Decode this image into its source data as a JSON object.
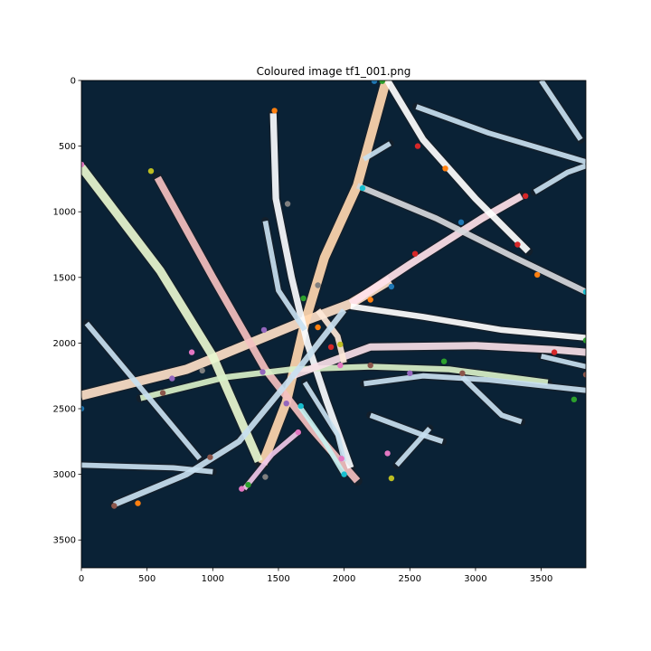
{
  "title": "Coloured image tf1_001.png",
  "image": {
    "width": 3840,
    "height": 3712,
    "background": "#0a2236"
  },
  "axes": {
    "x_ticks": [
      0,
      500,
      1000,
      1500,
      2000,
      2500,
      3000,
      3500
    ],
    "y_ticks": [
      0,
      500,
      1000,
      1500,
      2000,
      2500,
      3000,
      3500
    ],
    "x_range": [
      0,
      3840
    ],
    "y_range": [
      0,
      3712
    ]
  },
  "filaments": [
    {
      "color": "#fde0c8",
      "width": 70,
      "points": [
        [
          0,
          2400
        ],
        [
          800,
          2200
        ],
        [
          1650,
          1850
        ],
        [
          2050,
          1700
        ],
        [
          2350,
          1520
        ]
      ]
    },
    {
      "color": "#ffe2ea",
      "width": 55,
      "points": [
        [
          2050,
          1700
        ],
        [
          2500,
          1400
        ],
        [
          3050,
          1050
        ],
        [
          3350,
          880
        ]
      ]
    },
    {
      "color": "#ffd7b0",
      "width": 70,
      "points": [
        [
          1380,
          2920
        ],
        [
          1560,
          2450
        ],
        [
          1700,
          1850
        ],
        [
          1850,
          1350
        ],
        [
          2100,
          800
        ],
        [
          2320,
          0
        ]
      ]
    },
    {
      "color": "#f4c0c0",
      "width": 55,
      "points": [
        [
          580,
          740
        ],
        [
          1000,
          1500
        ],
        [
          1400,
          2200
        ],
        [
          1750,
          2650
        ],
        [
          2100,
          3050
        ]
      ]
    },
    {
      "color": "#fafcff",
      "width": 50,
      "points": [
        [
          1460,
          250
        ],
        [
          1480,
          900
        ],
        [
          1600,
          1500
        ],
        [
          1720,
          2000
        ],
        [
          1870,
          2450
        ],
        [
          2050,
          2950
        ]
      ]
    },
    {
      "color": "#e8f7d0",
      "width": 65,
      "points": [
        [
          0,
          660
        ],
        [
          600,
          1450
        ],
        [
          1000,
          2100
        ],
        [
          1350,
          2900
        ]
      ]
    },
    {
      "color": "#d8f0c8",
      "width": 45,
      "points": [
        [
          450,
          2420
        ],
        [
          1100,
          2260
        ],
        [
          1600,
          2200
        ],
        [
          2200,
          2180
        ],
        [
          2800,
          2200
        ],
        [
          3550,
          2300
        ]
      ]
    },
    {
      "color": "#f7e0e8",
      "width": 55,
      "points": [
        [
          1600,
          2250
        ],
        [
          2200,
          2030
        ],
        [
          3000,
          2020
        ],
        [
          3600,
          2050
        ],
        [
          3840,
          2070
        ]
      ]
    },
    {
      "color": "#ffffff",
      "width": 45,
      "points": [
        [
          2050,
          1720
        ],
        [
          2600,
          1800
        ],
        [
          3200,
          1900
        ],
        [
          3840,
          1960
        ]
      ]
    },
    {
      "color": "#ffffff",
      "width": 50,
      "points": [
        [
          2330,
          0
        ],
        [
          2600,
          450
        ],
        [
          3000,
          900
        ],
        [
          3400,
          1300
        ]
      ]
    },
    {
      "color": "#d6d8dc",
      "width": 45,
      "points": [
        [
          2100,
          800
        ],
        [
          2700,
          1050
        ],
        [
          3300,
          1350
        ],
        [
          3840,
          1610
        ]
      ]
    },
    {
      "color": "#fde8d8",
      "width": 45,
      "points": [
        [
          1800,
          1750
        ],
        [
          1950,
          1950
        ],
        [
          2000,
          2150
        ]
      ]
    },
    {
      "color": "#c8dff0",
      "width": 45,
      "points": [
        [
          250,
          3230
        ],
        [
          800,
          3000
        ],
        [
          1200,
          2750
        ],
        [
          1650,
          2200
        ],
        [
          2000,
          1750
        ]
      ]
    },
    {
      "color": "#c8dff0",
      "width": 40,
      "points": [
        [
          0,
          2930
        ],
        [
          700,
          2950
        ],
        [
          1000,
          2980
        ]
      ]
    },
    {
      "color": "#c8dff0",
      "width": 40,
      "points": [
        [
          40,
          1850
        ],
        [
          500,
          2400
        ],
        [
          900,
          2880
        ]
      ]
    },
    {
      "color": "#c8dff0",
      "width": 40,
      "points": [
        [
          1400,
          1070
        ],
        [
          1500,
          1600
        ],
        [
          1700,
          1900
        ]
      ]
    },
    {
      "color": "#c8dff0",
      "width": 40,
      "points": [
        [
          2550,
          200
        ],
        [
          3100,
          400
        ],
        [
          3840,
          620
        ]
      ]
    },
    {
      "color": "#c8dff0",
      "width": 40,
      "points": [
        [
          3500,
          0
        ],
        [
          3700,
          300
        ],
        [
          3800,
          450
        ]
      ]
    },
    {
      "color": "#c8dff0",
      "width": 40,
      "points": [
        [
          3450,
          850
        ],
        [
          3700,
          700
        ],
        [
          3840,
          650
        ]
      ]
    },
    {
      "color": "#c8dff0",
      "width": 38,
      "points": [
        [
          2150,
          600
        ],
        [
          2350,
          480
        ]
      ]
    },
    {
      "color": "#c8dff0",
      "width": 40,
      "points": [
        [
          2150,
          2310
        ],
        [
          2600,
          2250
        ],
        [
          3100,
          2280
        ],
        [
          3840,
          2360
        ]
      ]
    },
    {
      "color": "#c8dff0",
      "width": 40,
      "points": [
        [
          2900,
          2260
        ],
        [
          3200,
          2550
        ],
        [
          3350,
          2600
        ]
      ]
    },
    {
      "color": "#c8dff0",
      "width": 40,
      "points": [
        [
          2200,
          2550
        ],
        [
          2600,
          2700
        ],
        [
          2750,
          2750
        ]
      ]
    },
    {
      "color": "#c8dff0",
      "width": 38,
      "points": [
        [
          2400,
          2930
        ],
        [
          2650,
          2650
        ]
      ]
    },
    {
      "color": "#c8dff0",
      "width": 38,
      "points": [
        [
          3500,
          2100
        ],
        [
          3840,
          2180
        ]
      ]
    },
    {
      "color": "#c8dff0",
      "width": 36,
      "points": [
        [
          1700,
          2300
        ],
        [
          1950,
          2700
        ],
        [
          2000,
          2900
        ]
      ]
    },
    {
      "color": "#f0c8e8",
      "width": 38,
      "points": [
        [
          1240,
          3110
        ],
        [
          1450,
          2850
        ],
        [
          1650,
          2680
        ]
      ]
    },
    {
      "color": "#c8f0f0",
      "width": 36,
      "points": [
        [
          1660,
          2480
        ],
        [
          1850,
          2750
        ],
        [
          2000,
          3000
        ]
      ]
    }
  ],
  "markers": [
    {
      "x": 2230,
      "y": 5,
      "color": "#1f77b4"
    },
    {
      "x": 2290,
      "y": 5,
      "color": "#2ca02c"
    },
    {
      "x": 1470,
      "y": 230,
      "color": "#ff7f0e"
    },
    {
      "x": 2560,
      "y": 500,
      "color": "#d62728"
    },
    {
      "x": 2770,
      "y": 670,
      "color": "#ff7f0e"
    },
    {
      "x": 0,
      "y": 640,
      "color": "#e377c2"
    },
    {
      "x": 530,
      "y": 690,
      "color": "#bcbd22"
    },
    {
      "x": 2140,
      "y": 820,
      "color": "#17becf"
    },
    {
      "x": 3380,
      "y": 880,
      "color": "#d62728"
    },
    {
      "x": 1570,
      "y": 940,
      "color": "#7f7f7f"
    },
    {
      "x": 2890,
      "y": 1080,
      "color": "#1f77b4"
    },
    {
      "x": 3320,
      "y": 1250,
      "color": "#d62728"
    },
    {
      "x": 2540,
      "y": 1320,
      "color": "#d62728"
    },
    {
      "x": 3470,
      "y": 1480,
      "color": "#ff7f0e"
    },
    {
      "x": 1800,
      "y": 1560,
      "color": "#7f7f7f"
    },
    {
      "x": 2360,
      "y": 1570,
      "color": "#1f77b4"
    },
    {
      "x": 3840,
      "y": 1610,
      "color": "#17becf"
    },
    {
      "x": 1690,
      "y": 1660,
      "color": "#2ca02c"
    },
    {
      "x": 2200,
      "y": 1670,
      "color": "#ff7f0e"
    },
    {
      "x": 1390,
      "y": 1900,
      "color": "#9467bd"
    },
    {
      "x": 1800,
      "y": 1880,
      "color": "#ff7f0e"
    },
    {
      "x": 3840,
      "y": 1980,
      "color": "#2ca02c"
    },
    {
      "x": 1900,
      "y": 2030,
      "color": "#d62728"
    },
    {
      "x": 1970,
      "y": 2010,
      "color": "#bcbd22"
    },
    {
      "x": 840,
      "y": 2070,
      "color": "#e377c2"
    },
    {
      "x": 3600,
      "y": 2070,
      "color": "#d62728"
    },
    {
      "x": 1970,
      "y": 2170,
      "color": "#e377c2"
    },
    {
      "x": 2200,
      "y": 2170,
      "color": "#8c564b"
    },
    {
      "x": 2760,
      "y": 2140,
      "color": "#2ca02c"
    },
    {
      "x": 920,
      "y": 2210,
      "color": "#7f7f7f"
    },
    {
      "x": 1380,
      "y": 2220,
      "color": "#9467bd"
    },
    {
      "x": 2500,
      "y": 2230,
      "color": "#9467bd"
    },
    {
      "x": 2900,
      "y": 2230,
      "color": "#8c564b"
    },
    {
      "x": 690,
      "y": 2270,
      "color": "#9467bd"
    },
    {
      "x": 3840,
      "y": 2240,
      "color": "#8c564b"
    },
    {
      "x": 620,
      "y": 2380,
      "color": "#8c564b"
    },
    {
      "x": 3750,
      "y": 2430,
      "color": "#2ca02c"
    },
    {
      "x": 1560,
      "y": 2460,
      "color": "#9467bd"
    },
    {
      "x": 1670,
      "y": 2480,
      "color": "#17becf"
    },
    {
      "x": 0,
      "y": 2500,
      "color": "#1f77b4"
    },
    {
      "x": 1650,
      "y": 2680,
      "color": "#e377c2"
    },
    {
      "x": 2330,
      "y": 2840,
      "color": "#e377c2"
    },
    {
      "x": 980,
      "y": 2870,
      "color": "#8c564b"
    },
    {
      "x": 1980,
      "y": 2880,
      "color": "#e377c2"
    },
    {
      "x": 2000,
      "y": 3000,
      "color": "#17becf"
    },
    {
      "x": 1400,
      "y": 3020,
      "color": "#7f7f7f"
    },
    {
      "x": 2360,
      "y": 3030,
      "color": "#bcbd22"
    },
    {
      "x": 1270,
      "y": 3080,
      "color": "#2ca02c"
    },
    {
      "x": 1220,
      "y": 3110,
      "color": "#e377c2"
    },
    {
      "x": 430,
      "y": 3220,
      "color": "#ff7f0e"
    },
    {
      "x": 250,
      "y": 3240,
      "color": "#8c564b"
    }
  ]
}
